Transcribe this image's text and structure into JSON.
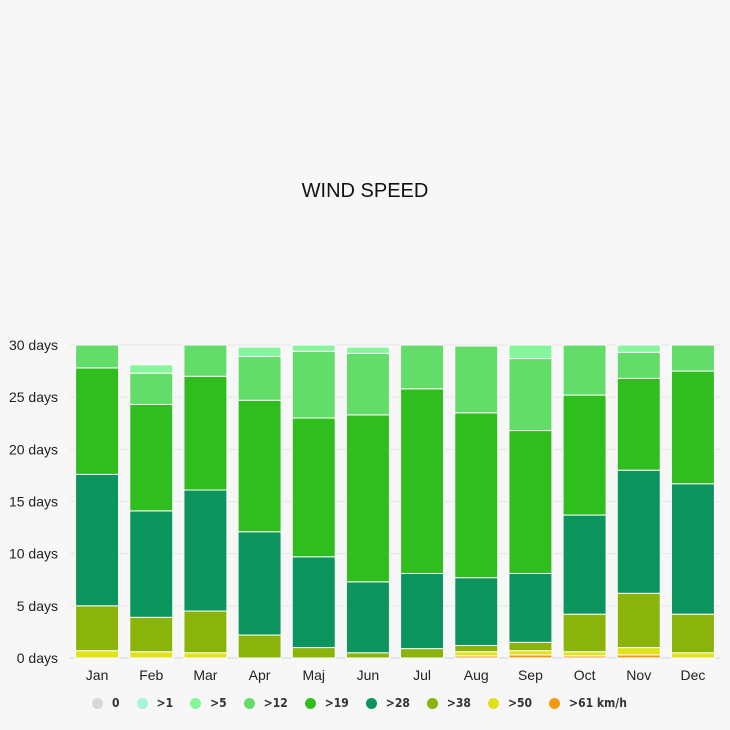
{
  "chart_data": {
    "type": "bar",
    "stacked": true,
    "title": "WIND SPEED",
    "xlabel": "",
    "ylabel": "",
    "ylim": [
      0,
      30
    ],
    "y_ticks": [
      "0 days",
      "5 days",
      "10 days",
      "15 days",
      "20 days",
      "25 days",
      "30 days"
    ],
    "y_tick_values": [
      0,
      5,
      10,
      15,
      20,
      25,
      30
    ],
    "grid": true,
    "legend_position": "bottom",
    "categories": [
      "Jan",
      "Feb",
      "Mar",
      "Apr",
      "Maj",
      "Jun",
      "Jul",
      "Aug",
      "Sep",
      "Oct",
      "Nov",
      "Dec"
    ],
    "series": [
      {
        "name": ">61 km/h",
        "color": "#f39a12",
        "values": [
          0,
          0,
          0,
          0,
          0,
          0,
          0,
          0.2,
          0.3,
          0.2,
          0.3,
          0
        ]
      },
      {
        "name": ">50",
        "color": "#e2e21c",
        "values": [
          0.7,
          0.6,
          0.5,
          0,
          0,
          0,
          0,
          0.4,
          0.4,
          0.4,
          0.7,
          0.5
        ]
      },
      {
        "name": ">38",
        "color": "#8ab40a",
        "values": [
          4.3,
          3.3,
          4.0,
          2.2,
          1.0,
          0.5,
          0.9,
          0.6,
          0.8,
          3.6,
          5.2,
          3.7
        ]
      },
      {
        "name": ">28",
        "color": "#0c945e",
        "values": [
          12.6,
          10.2,
          11.6,
          9.9,
          8.7,
          6.8,
          7.2,
          6.5,
          6.6,
          9.5,
          11.8,
          12.5
        ]
      },
      {
        "name": ">19",
        "color": "#30bd1e",
        "values": [
          10.2,
          10.2,
          10.9,
          12.6,
          13.3,
          16.0,
          17.7,
          15.8,
          13.7,
          11.5,
          8.8,
          10.8
        ]
      },
      {
        "name": ">12",
        "color": "#64dc6a",
        "values": [
          2.2,
          3.0,
          3.0,
          4.2,
          6.4,
          5.9,
          4.2,
          6.4,
          6.9,
          4.8,
          2.5,
          2.5
        ]
      },
      {
        "name": ">5",
        "color": "#86f59c",
        "values": [
          0,
          0.8,
          0,
          0.9,
          0.6,
          0.6,
          0,
          0,
          1.3,
          0,
          0.7,
          0
        ]
      },
      {
        "name": ">1",
        "color": "#a6f7d8",
        "values": [
          0,
          0,
          0,
          0,
          0,
          0,
          0,
          0,
          0,
          0,
          0,
          0
        ]
      },
      {
        "name": "0",
        "color": "#dcd6d8",
        "values": [
          0,
          0,
          0,
          0,
          0,
          0,
          0,
          0,
          0,
          0,
          0,
          0
        ]
      }
    ],
    "legend": [
      {
        "label": "0",
        "color": "#dcd6d8"
      },
      {
        "label": ">1",
        "color": "#a6f7d8"
      },
      {
        "label": ">5",
        "color": "#86f59c"
      },
      {
        "label": ">12",
        "color": "#64dc6a"
      },
      {
        "label": ">19",
        "color": "#30bd1e"
      },
      {
        "label": ">28",
        "color": "#0c945e"
      },
      {
        "label": ">38",
        "color": "#8ab40a"
      },
      {
        "label": ">50",
        "color": "#e2e21c"
      },
      {
        "label": ">61 km/h",
        "color": "#f39a12"
      }
    ]
  }
}
